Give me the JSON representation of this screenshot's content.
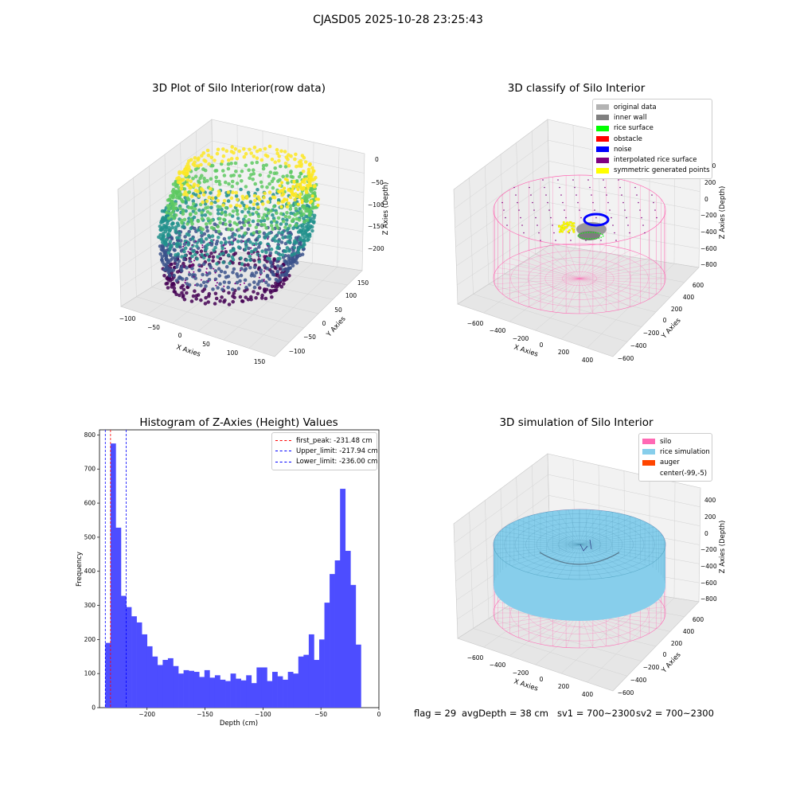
{
  "suptitle": "CJASD05 2025-10-28 23:25:43",
  "panels": {
    "raw": {
      "title": "3D Plot of Silo Interior(row data)",
      "xlabel": "X Axies",
      "ylabel": "Y Axies",
      "zlabel": "Z Axies (Depth)",
      "xticks": [
        "−100",
        "−50",
        "0",
        "50",
        "100",
        "150"
      ],
      "yticks": [
        "150",
        "100",
        "50",
        "0",
        "−50",
        "−100"
      ],
      "zticks": [
        "0",
        "−50",
        "−100",
        "−150",
        "−200"
      ]
    },
    "classify": {
      "title": "3D classify of Silo Interior",
      "xlabel": "X Axies",
      "ylabel": "Y Axies",
      "zlabel": "Z Axies (Depth)",
      "xticks": [
        "−600",
        "−400",
        "−200",
        "0",
        "200",
        "400"
      ],
      "yticks": [
        "600",
        "400",
        "200",
        "0",
        "−200",
        "−400",
        "−600"
      ],
      "zticks": [
        "400",
        "200",
        "0",
        "−200",
        "−400",
        "−600",
        "−800"
      ],
      "legend": [
        {
          "label": "original data",
          "color": "#b3b3b3"
        },
        {
          "label": "inner wall",
          "color": "#808080"
        },
        {
          "label": "rice surface",
          "color": "#00ff00"
        },
        {
          "label": "obstacle",
          "color": "#ff0000"
        },
        {
          "label": "noise",
          "color": "#0000ff"
        },
        {
          "label": "interpolated rice surface",
          "color": "#800080"
        },
        {
          "label": "symmetric generated points",
          "color": "#ffff00"
        }
      ]
    },
    "histogram": {
      "title": "Histogram of Z-Axies (Height) Values",
      "xlabel": "Depth (cm)",
      "ylabel": "Frequency",
      "legend": [
        {
          "label": "first_peak: -231.48 cm",
          "color": "#ff0000"
        },
        {
          "label": "Upper_limit: -217.94 cm",
          "color": "#0000ff"
        },
        {
          "label": "Lower_limit: -236.00 cm",
          "color": "#0000ff"
        }
      ]
    },
    "simulation": {
      "title": "3D simulation of Silo Interior",
      "xlabel": "X Axies",
      "ylabel": "Y Axies",
      "zlabel": "Z Axies (Depth)",
      "xticks": [
        "−600",
        "−400",
        "−200",
        "0",
        "200",
        "400"
      ],
      "yticks": [
        "600",
        "400",
        "200",
        "0",
        "−200",
        "−400",
        "−600"
      ],
      "zticks": [
        "400",
        "200",
        "0",
        "−200",
        "−400",
        "−600",
        "−800"
      ],
      "legend": [
        {
          "label": "silo",
          "color": "#ff69b4"
        },
        {
          "label": "rice simulation",
          "color": "#87ceeb"
        },
        {
          "label": "auger",
          "color": "#ff4500"
        },
        {
          "label": "center(-99,-5)",
          "color": "#ffffff"
        }
      ]
    }
  },
  "footer": {
    "flag": "flag = 29",
    "avg_depth": "avgDepth = 38 cm",
    "sv1": "sv1 = 700~2300",
    "sv2": "sv2 = 700~2300"
  },
  "colors": {
    "hist_bar": "#4d4dff",
    "silo_mesh": "#ff69b4",
    "rice": "#87ceeb"
  },
  "chart_data": {
    "type": "bar",
    "title": "Histogram of Z-Axies (Height) Values",
    "xlabel": "Depth (cm)",
    "ylabel": "Frequency",
    "xlim": [
      -241,
      0
    ],
    "ylim": [
      0,
      815
    ],
    "xticks": [
      -200,
      -150,
      -100,
      -50,
      0
    ],
    "yticks": [
      0,
      100,
      200,
      300,
      400,
      500,
      600,
      700,
      800
    ],
    "bin_start": -236.0,
    "bin_width": 4.5,
    "values": [
      190,
      775,
      528,
      328,
      295,
      268,
      250,
      215,
      180,
      150,
      125,
      140,
      145,
      122,
      100,
      110,
      108,
      105,
      90,
      110,
      88,
      95,
      82,
      78,
      100,
      85,
      80,
      95,
      72,
      118,
      118,
      78,
      105,
      92,
      82,
      105,
      100,
      150,
      155,
      215,
      140,
      200,
      308,
      392,
      432,
      642,
      460,
      360,
      185
    ],
    "vlines": [
      {
        "name": "first_peak: -231.48 cm",
        "x": -231.48,
        "color": "#ff0000"
      },
      {
        "name": "Upper_limit: -217.94 cm",
        "x": -217.94,
        "color": "#0000ff"
      },
      {
        "name": "Lower_limit: -236.00 cm",
        "x": -236.0,
        "color": "#0000ff"
      }
    ]
  }
}
